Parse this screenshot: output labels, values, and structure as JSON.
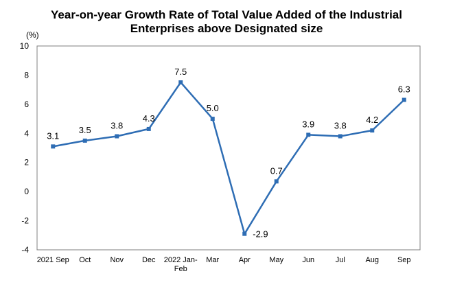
{
  "chart_data": {
    "type": "line",
    "title_lines": [
      "Year-on-year Growth Rate of Total Value Added of the Industrial",
      "Enterprises above Designated size"
    ],
    "unit": "(%)",
    "categories": [
      "2021 Sep",
      "Oct",
      "Nov",
      "Dec",
      "2022 Jan-Feb",
      "Mar",
      "Apr",
      "May",
      "Jun",
      "Jul",
      "Aug",
      "Sep"
    ],
    "category_lines": [
      [
        "2021 Sep"
      ],
      [
        "Oct"
      ],
      [
        "Nov"
      ],
      [
        "Dec"
      ],
      [
        "2022 Jan-",
        "Feb"
      ],
      [
        "Mar"
      ],
      [
        "Apr"
      ],
      [
        "May"
      ],
      [
        "Jun"
      ],
      [
        "Jul"
      ],
      [
        "Aug"
      ],
      [
        "Sep"
      ]
    ],
    "series": [
      {
        "values": [
          3.1,
          3.5,
          3.8,
          4.3,
          7.5,
          5.0,
          -2.9,
          0.7,
          3.9,
          3.8,
          4.2,
          6.3
        ]
      }
    ],
    "data_labels": [
      "3.1",
      "3.5",
      "3.8",
      "4.3",
      "7.5",
      "5.0",
      "-2.9",
      "0.7",
      "3.9",
      "3.8",
      "4.2",
      "6.3"
    ],
    "ylim": [
      -4,
      10
    ],
    "yticks": [
      -4,
      -2,
      0,
      2,
      4,
      6,
      8,
      10
    ],
    "ytick_labels": [
      "-4",
      "-2",
      "0",
      "2",
      "4",
      "6",
      "8",
      "10"
    ],
    "line_color": "#2E6DB4",
    "grid": false,
    "legend": false
  }
}
